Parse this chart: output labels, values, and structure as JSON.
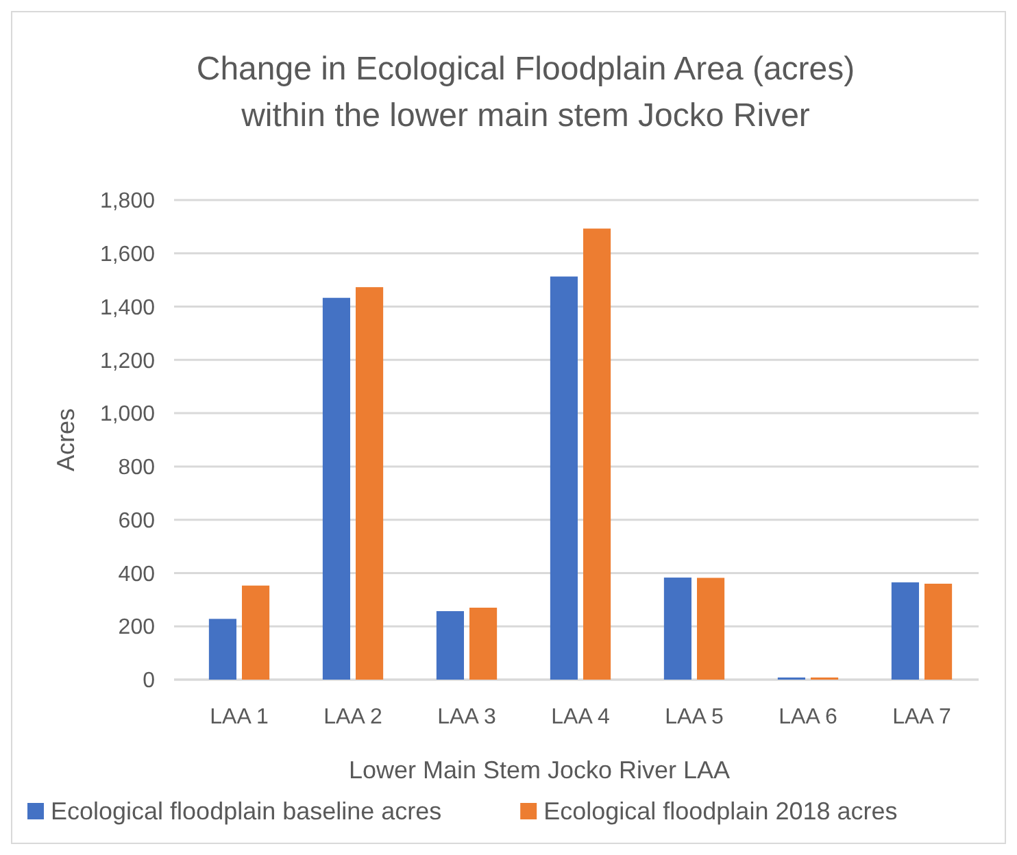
{
  "chart_data": {
    "type": "bar",
    "title": "Change in Ecological Floodplain Area (acres)\nwithin the lower main stem Jocko River",
    "xlabel": "Lower Main Stem Jocko River LAA",
    "ylabel": "Acres",
    "categories": [
      "LAA 1",
      "LAA 2",
      "LAA 3",
      "LAA 4",
      "LAA 5",
      "LAA 6",
      "LAA 7"
    ],
    "series": [
      {
        "name": "Ecological floodplain baseline acres",
        "color": "#4472c4",
        "values": [
          228,
          1433,
          257,
          1513,
          383,
          8,
          365
        ]
      },
      {
        "name": "Ecological floodplain 2018 acres",
        "color": "#ed7d31",
        "values": [
          353,
          1473,
          270,
          1693,
          382,
          8,
          360
        ]
      }
    ],
    "ylim": [
      0,
      1800
    ],
    "yticks": [
      {
        "value": 0,
        "label": "0"
      },
      {
        "value": 200,
        "label": "200"
      },
      {
        "value": 400,
        "label": "400"
      },
      {
        "value": 600,
        "label": "600"
      },
      {
        "value": 800,
        "label": "800"
      },
      {
        "value": 1000,
        "label": "1,000"
      },
      {
        "value": 1200,
        "label": "1,200"
      },
      {
        "value": 1400,
        "label": "1,400"
      },
      {
        "value": 1600,
        "label": "1,600"
      },
      {
        "value": 1800,
        "label": "1,800"
      }
    ],
    "grid": "y",
    "legend": "bottom"
  }
}
